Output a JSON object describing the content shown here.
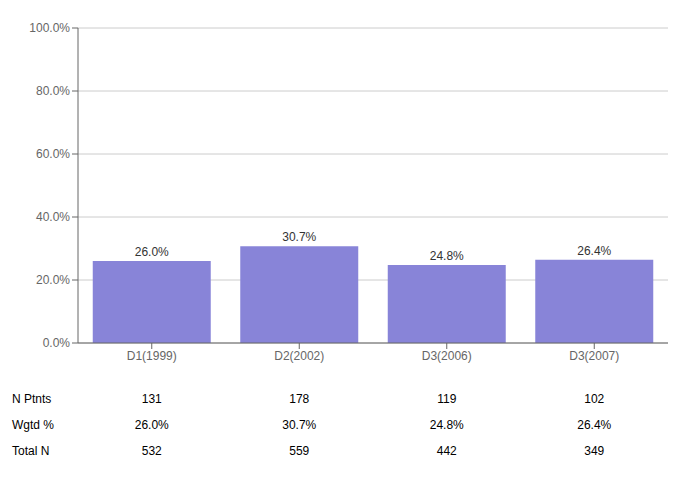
{
  "chart_data": {
    "type": "bar",
    "categories": [
      "D1(1999)",
      "D2(2002)",
      "D3(2006)",
      "D3(2007)"
    ],
    "values": [
      26.0,
      30.7,
      24.8,
      26.4
    ],
    "value_labels": [
      "26.0%",
      "30.7%",
      "24.8%",
      "26.4%"
    ],
    "data_labels": true,
    "color": "#8884d8",
    "ylim": [
      0,
      100
    ],
    "yticks": [
      {
        "value": 0,
        "label": "0.0%"
      },
      {
        "value": 20,
        "label": "20.0%"
      },
      {
        "value": 40,
        "label": "40.0%"
      },
      {
        "value": 60,
        "label": "60.0%"
      },
      {
        "value": 80,
        "label": "80.0%"
      },
      {
        "value": 100,
        "label": "100.0%"
      }
    ],
    "grid": true,
    "table": [
      {
        "label": "N Ptnts",
        "values": [
          131,
          178,
          119,
          102
        ]
      },
      {
        "label": "Wgtd %",
        "values": [
          26.0,
          30.7,
          24.8,
          26.4
        ],
        "value_labels": [
          "26.0%",
          "30.7%",
          "24.8%",
          "26.4%"
        ]
      },
      {
        "label": "Total N",
        "values": [
          532,
          559,
          442,
          349
        ]
      }
    ]
  }
}
